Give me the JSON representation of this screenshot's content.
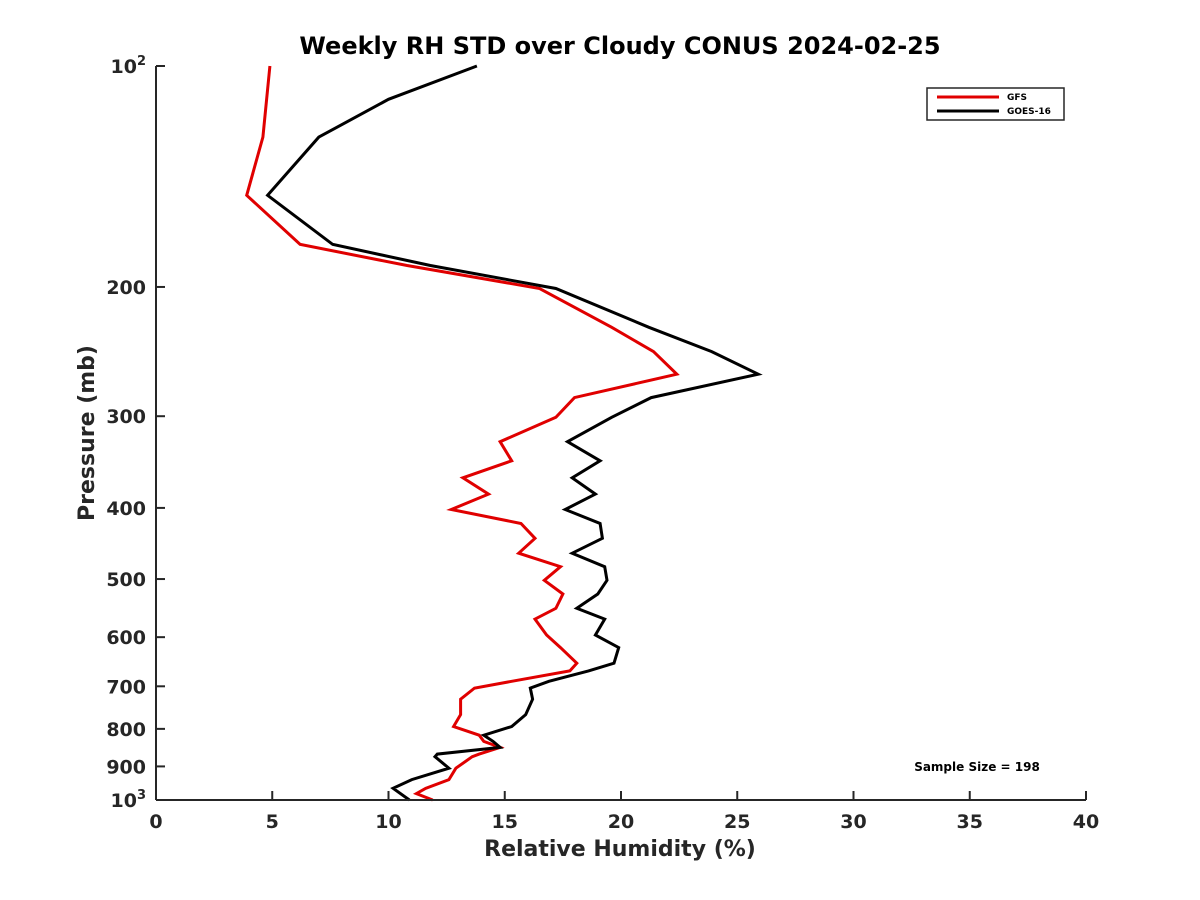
{
  "chart_data": {
    "type": "line",
    "title": "Weekly RH STD over Cloudy CONUS 2024-02-25",
    "xlabel": "Relative Humidity (%)",
    "ylabel": "Pressure (mb)",
    "xlim": [
      0,
      40
    ],
    "ylim": [
      100,
      1000
    ],
    "yscale": "log",
    "y_reversed": true,
    "grid": false,
    "legend_position": "top-right",
    "x_ticks": [
      "0",
      "5",
      "10",
      "15",
      "20",
      "25",
      "30",
      "35",
      "40"
    ],
    "y_ticks": [
      {
        "value": 100,
        "label": "10",
        "sup": "2"
      },
      {
        "value": 200,
        "label": "200",
        "sup": ""
      },
      {
        "value": 300,
        "label": "300",
        "sup": ""
      },
      {
        "value": 400,
        "label": "400",
        "sup": ""
      },
      {
        "value": 500,
        "label": "500",
        "sup": ""
      },
      {
        "value": 600,
        "label": "600",
        "sup": ""
      },
      {
        "value": 700,
        "label": "700",
        "sup": ""
      },
      {
        "value": 800,
        "label": "800",
        "sup": ""
      },
      {
        "value": 900,
        "label": "900",
        "sup": ""
      },
      {
        "value": 1000,
        "label": "10",
        "sup": "3"
      }
    ],
    "annotation": "Sample Size = 198",
    "series": [
      {
        "name": "GFS",
        "color": "#e00000",
        "points": [
          [
            4.9,
            100
          ],
          [
            4.6,
            125
          ],
          [
            3.9,
            150
          ],
          [
            6.2,
            175
          ],
          [
            10.8,
            187
          ],
          [
            16.5,
            201
          ],
          [
            19.6,
            227
          ],
          [
            21.4,
            245
          ],
          [
            22.4,
            263
          ],
          [
            18.0,
            283
          ],
          [
            17.2,
            301
          ],
          [
            14.8,
            325
          ],
          [
            15.3,
            345
          ],
          [
            13.2,
            364
          ],
          [
            14.3,
            383
          ],
          [
            12.7,
            402
          ],
          [
            15.7,
            420
          ],
          [
            16.3,
            440
          ],
          [
            15.6,
            461
          ],
          [
            17.4,
            481
          ],
          [
            16.7,
            502
          ],
          [
            17.5,
            524
          ],
          [
            17.2,
            548
          ],
          [
            16.3,
            567
          ],
          [
            16.8,
            596
          ],
          [
            17.4,
            620
          ],
          [
            18.1,
            651
          ],
          [
            17.8,
            667
          ],
          [
            15.3,
            689
          ],
          [
            13.7,
            704
          ],
          [
            13.1,
            729
          ],
          [
            13.1,
            765
          ],
          [
            12.8,
            794
          ],
          [
            13.9,
            816
          ],
          [
            14.1,
            832
          ],
          [
            14.8,
            848
          ],
          [
            13.9,
            866
          ],
          [
            13.6,
            873
          ],
          [
            12.9,
            905
          ],
          [
            12.6,
            938
          ],
          [
            11.6,
            964
          ],
          [
            11.2,
            980
          ],
          [
            11.9,
            1000
          ]
        ]
      },
      {
        "name": "GOES-16",
        "color": "#000000",
        "points": [
          [
            13.8,
            100
          ],
          [
            10.0,
            111
          ],
          [
            7.0,
            125
          ],
          [
            4.8,
            150
          ],
          [
            7.6,
            175
          ],
          [
            11.8,
            187
          ],
          [
            17.2,
            201
          ],
          [
            21.2,
            227
          ],
          [
            23.9,
            245
          ],
          [
            25.9,
            263
          ],
          [
            21.3,
            283
          ],
          [
            19.6,
            301
          ],
          [
            17.7,
            325
          ],
          [
            19.1,
            345
          ],
          [
            17.9,
            364
          ],
          [
            18.9,
            383
          ],
          [
            17.6,
            402
          ],
          [
            19.1,
            420
          ],
          [
            19.2,
            440
          ],
          [
            17.9,
            461
          ],
          [
            19.3,
            481
          ],
          [
            19.4,
            502
          ],
          [
            19.0,
            524
          ],
          [
            18.1,
            548
          ],
          [
            19.3,
            567
          ],
          [
            18.9,
            596
          ],
          [
            19.9,
            620
          ],
          [
            19.7,
            651
          ],
          [
            18.6,
            667
          ],
          [
            16.9,
            689
          ],
          [
            16.1,
            704
          ],
          [
            16.2,
            729
          ],
          [
            15.9,
            765
          ],
          [
            15.3,
            794
          ],
          [
            14.1,
            816
          ],
          [
            14.5,
            832
          ],
          [
            14.8,
            848
          ],
          [
            12.1,
            866
          ],
          [
            12.0,
            873
          ],
          [
            12.6,
            905
          ],
          [
            11.0,
            938
          ],
          [
            10.2,
            964
          ],
          [
            10.9,
            1000
          ]
        ]
      }
    ]
  }
}
